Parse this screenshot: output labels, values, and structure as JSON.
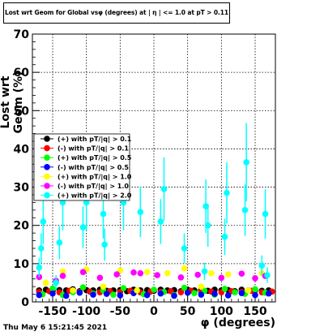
{
  "chart_data": {
    "type": "scatter",
    "title": "Lost wrt Geom for Global vsφ (degrees) at | η | <= 1.0 at pT > 0.11",
    "xlabel": "φ (degrees)",
    "ylabel": "Lost wrt Geom (%)",
    "xlim": [
      -180,
      180
    ],
    "ylim": [
      0,
      70
    ],
    "xticks": [
      -150,
      -100,
      -50,
      0,
      50,
      100,
      150
    ],
    "yticks": [
      0,
      10,
      20,
      30,
      40,
      50,
      60,
      70
    ],
    "grid": true,
    "legend_position": "left-middle",
    "footer": "Thu May  6 15:21:45 2021",
    "series": [
      {
        "name": "(+) with pT/|q| > 0.1",
        "color": "#000000",
        "points": [
          [
            -170,
            3
          ],
          [
            -160,
            3.2
          ],
          [
            -150,
            2.9
          ],
          [
            -140,
            3.1
          ],
          [
            -130,
            3
          ],
          [
            -120,
            3.3
          ],
          [
            -110,
            2.8
          ],
          [
            -100,
            3.1
          ],
          [
            -90,
            3
          ],
          [
            -80,
            3.2
          ],
          [
            -70,
            2.9
          ],
          [
            -60,
            3
          ],
          [
            -50,
            3.1
          ],
          [
            -40,
            2.8
          ],
          [
            -30,
            3.2
          ],
          [
            -20,
            3
          ],
          [
            -10,
            3.1
          ],
          [
            0,
            2.9
          ],
          [
            10,
            3.2
          ],
          [
            20,
            3
          ],
          [
            30,
            3.1
          ],
          [
            40,
            2.8
          ],
          [
            50,
            3.2
          ],
          [
            60,
            3
          ],
          [
            70,
            3.1
          ],
          [
            80,
            2.9
          ],
          [
            90,
            3.2
          ],
          [
            100,
            3
          ],
          [
            110,
            3.1
          ],
          [
            120,
            2.8
          ],
          [
            130,
            3.2
          ],
          [
            140,
            3
          ],
          [
            150,
            3.1
          ],
          [
            160,
            2.9
          ],
          [
            170,
            3
          ]
        ]
      },
      {
        "name": "(-) with pT/|q| > 0.1",
        "color": "#ff0000",
        "points": [
          [
            -170,
            2.6
          ],
          [
            -155,
            2.8
          ],
          [
            -140,
            2.5
          ],
          [
            -125,
            2.9
          ],
          [
            -110,
            2.6
          ],
          [
            -95,
            2.7
          ],
          [
            -80,
            2.5
          ],
          [
            -65,
            2.8
          ],
          [
            -50,
            2.6
          ],
          [
            -35,
            2.9
          ],
          [
            -20,
            2.5
          ],
          [
            -5,
            2.7
          ],
          [
            10,
            2.6
          ],
          [
            25,
            2.8
          ],
          [
            40,
            2.5
          ],
          [
            55,
            2.9
          ],
          [
            70,
            2.6
          ],
          [
            85,
            2.7
          ],
          [
            100,
            2.5
          ],
          [
            115,
            2.8
          ],
          [
            130,
            2.6
          ],
          [
            145,
            2.9
          ],
          [
            160,
            2.5
          ],
          [
            175,
            2.7
          ]
        ]
      },
      {
        "name": "(+) with pT/|q| > 0.5",
        "color": "#00ff00",
        "points": [
          [
            -165,
            2
          ],
          [
            -150,
            3.5
          ],
          [
            -135,
            1.8
          ],
          [
            -120,
            2.5
          ],
          [
            -105,
            3.8
          ],
          [
            -90,
            2.2
          ],
          [
            -75,
            3
          ],
          [
            -60,
            1.9
          ],
          [
            -45,
            3.6
          ],
          [
            -30,
            2.4
          ],
          [
            -15,
            2
          ],
          [
            0,
            3.2
          ],
          [
            15,
            2.6
          ],
          [
            30,
            1.8
          ],
          [
            45,
            3.7
          ],
          [
            60,
            2.3
          ],
          [
            75,
            2.9
          ],
          [
            90,
            1.9
          ],
          [
            105,
            3.4
          ],
          [
            120,
            2.5
          ],
          [
            135,
            2.1
          ],
          [
            150,
            3.3
          ],
          [
            165,
            2.4
          ]
        ]
      },
      {
        "name": "(-) with pT/|q| > 0.5",
        "color": "#0000ff",
        "points": [
          [
            -170,
            1.8
          ],
          [
            -150,
            2.2
          ],
          [
            -130,
            1.6
          ],
          [
            -110,
            2.4
          ],
          [
            -90,
            1.9
          ],
          [
            -70,
            2.1
          ],
          [
            -50,
            1.7
          ],
          [
            -30,
            2.3
          ],
          [
            -10,
            1.8
          ],
          [
            10,
            2.2
          ],
          [
            30,
            1.6
          ],
          [
            50,
            2.4
          ],
          [
            70,
            1.9
          ],
          [
            90,
            2.1
          ],
          [
            110,
            1.7
          ],
          [
            130,
            2.3
          ],
          [
            150,
            1.8
          ],
          [
            170,
            2.2
          ]
        ]
      },
      {
        "name": "(+) with pT/|q| > 1.0",
        "color": "#ffff00",
        "points": [
          [
            -160,
            5
          ],
          [
            -135,
            8
          ],
          [
            -120,
            3
          ],
          [
            -100,
            8.5
          ],
          [
            -75,
            4
          ],
          [
            -50,
            8.2
          ],
          [
            -25,
            3
          ],
          [
            -10,
            7.8
          ],
          [
            20,
            7.5
          ],
          [
            45,
            8.8
          ],
          [
            70,
            4
          ],
          [
            85,
            7.5
          ],
          [
            110,
            7.2
          ],
          [
            140,
            3
          ],
          [
            160,
            7.5
          ]
        ]
      },
      {
        "name": "(-) with pT/|q| > 1.0",
        "color": "#ff00ff",
        "points": [
          [
            -170,
            6.5
          ],
          [
            -145,
            5.5
          ],
          [
            -135,
            6.8
          ],
          [
            -105,
            7.8
          ],
          [
            -80,
            6.3
          ],
          [
            -55,
            7.2
          ],
          [
            -30,
            7.7
          ],
          [
            -20,
            7.5
          ],
          [
            5,
            7
          ],
          [
            40,
            6.4
          ],
          [
            65,
            7.1
          ],
          [
            100,
            6.3
          ],
          [
            130,
            7.4
          ],
          [
            150,
            6.2
          ],
          [
            165,
            6.8
          ]
        ]
      },
      {
        "name": "(+) with pT/|q| > 2.0",
        "color": "#00ffff",
        "points": [
          [
            -170,
            9
          ],
          [
            -167,
            14
          ],
          [
            -164,
            21
          ],
          [
            -145,
            5
          ],
          [
            -140,
            15.5
          ],
          [
            -135,
            26
          ],
          [
            -105,
            19.5
          ],
          [
            -100,
            26
          ],
          [
            -75,
            23
          ],
          [
            -73,
            15
          ],
          [
            -45,
            26
          ],
          [
            -20,
            23.5
          ],
          [
            10,
            21
          ],
          [
            15,
            29.5
          ],
          [
            45,
            14
          ],
          [
            75,
            8
          ],
          [
            77,
            25
          ],
          [
            80,
            20
          ],
          [
            105,
            17
          ],
          [
            108,
            28.5
          ],
          [
            135,
            24
          ],
          [
            137,
            36.5
          ],
          [
            160,
            9.5
          ],
          [
            165,
            23
          ],
          [
            168,
            7
          ]
        ]
      }
    ]
  }
}
